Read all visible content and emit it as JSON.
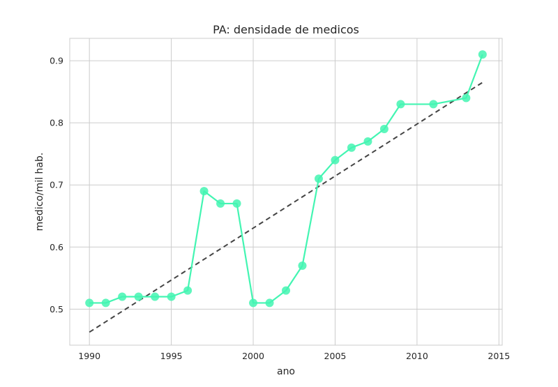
{
  "chart_data": {
    "type": "line",
    "title": "PA: densidade de medicos",
    "xlabel": "ano",
    "ylabel": "medico/mil hab.",
    "xlim": [
      1988.8,
      2015.2
    ],
    "ylim": [
      0.442,
      0.936
    ],
    "xticks": [
      1990,
      1995,
      2000,
      2005,
      2010,
      2015
    ],
    "yticks": [
      0.5,
      0.6,
      0.7,
      0.8,
      0.9
    ],
    "ytick_labels": [
      "0.5",
      "0.6",
      "0.7",
      "0.8",
      "0.9"
    ],
    "grid": true,
    "series": [
      {
        "color": "#43f5b2",
        "marker": "circle",
        "x": [
          1990,
          1991,
          1992,
          1993,
          1994,
          1995,
          1996,
          1997,
          1998,
          1999,
          2000,
          2001,
          2002,
          2003,
          2004,
          2005,
          2006,
          2007,
          2008,
          2009,
          2011,
          2013,
          2014
        ],
        "y": [
          0.51,
          0.51,
          0.52,
          0.52,
          0.52,
          0.52,
          0.53,
          0.69,
          0.67,
          0.67,
          0.51,
          0.51,
          0.53,
          0.57,
          0.71,
          0.74,
          0.76,
          0.77,
          0.79,
          0.83,
          0.83,
          0.84,
          0.91
        ]
      }
    ],
    "trend_line": {
      "color": "#444444",
      "style": "dashed",
      "x": [
        1990,
        2014
      ],
      "y": [
        0.463,
        0.865
      ]
    }
  }
}
